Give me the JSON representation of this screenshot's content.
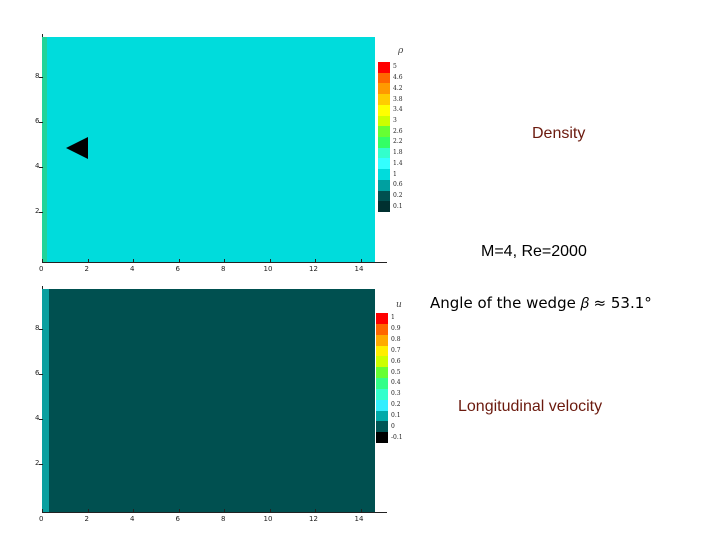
{
  "plots": {
    "density": {
      "var_label": "ρ",
      "field_color": "#00dcdc",
      "edge_color": "#22d39a",
      "x_ticks": [
        "0",
        "2",
        "4",
        "6",
        "8",
        "10",
        "12",
        "14"
      ],
      "y_ticks": [
        "8",
        "6",
        "4",
        "2"
      ],
      "levels": [
        "5",
        "4.6",
        "4.2",
        "3.8",
        "3.4",
        "3",
        "2.6",
        "2.2",
        "1.8",
        "1.4",
        "1",
        "0.6",
        "0.2",
        "0.1"
      ],
      "level_colors": [
        "#ff0000",
        "#ff6600",
        "#ff9900",
        "#ffcc00",
        "#ffff00",
        "#ccff00",
        "#66ff33",
        "#33ff66",
        "#33ffcc",
        "#33ffff",
        "#00dcdc",
        "#00a0a0",
        "#005050",
        "#003030"
      ]
    },
    "velocity": {
      "var_label": "u",
      "field_color": "#005050",
      "edge_color": "#0a9f9f",
      "x_ticks": [
        "0",
        "2",
        "4",
        "6",
        "8",
        "10",
        "12",
        "14"
      ],
      "y_ticks": [
        "8",
        "6",
        "4",
        "2"
      ],
      "levels": [
        "1",
        "0.9",
        "0.8",
        "0.7",
        "0.6",
        "0.5",
        "0.4",
        "0.3",
        "0.2",
        "0.1",
        "0",
        "-0.1"
      ],
      "level_colors": [
        "#ff0000",
        "#ff6600",
        "#ffaa00",
        "#ffee00",
        "#ccff00",
        "#66ff33",
        "#33ff88",
        "#33ffcc",
        "#33eeff",
        "#00aaaa",
        "#005555",
        "#000000"
      ]
    }
  },
  "captions": {
    "density": "Density",
    "conditions": "M=4,  Re=2000",
    "wedge_angle": "Angle of the wedge 𝛽 ≈ 53.1°",
    "velocity": "Longitudinal velocity"
  }
}
